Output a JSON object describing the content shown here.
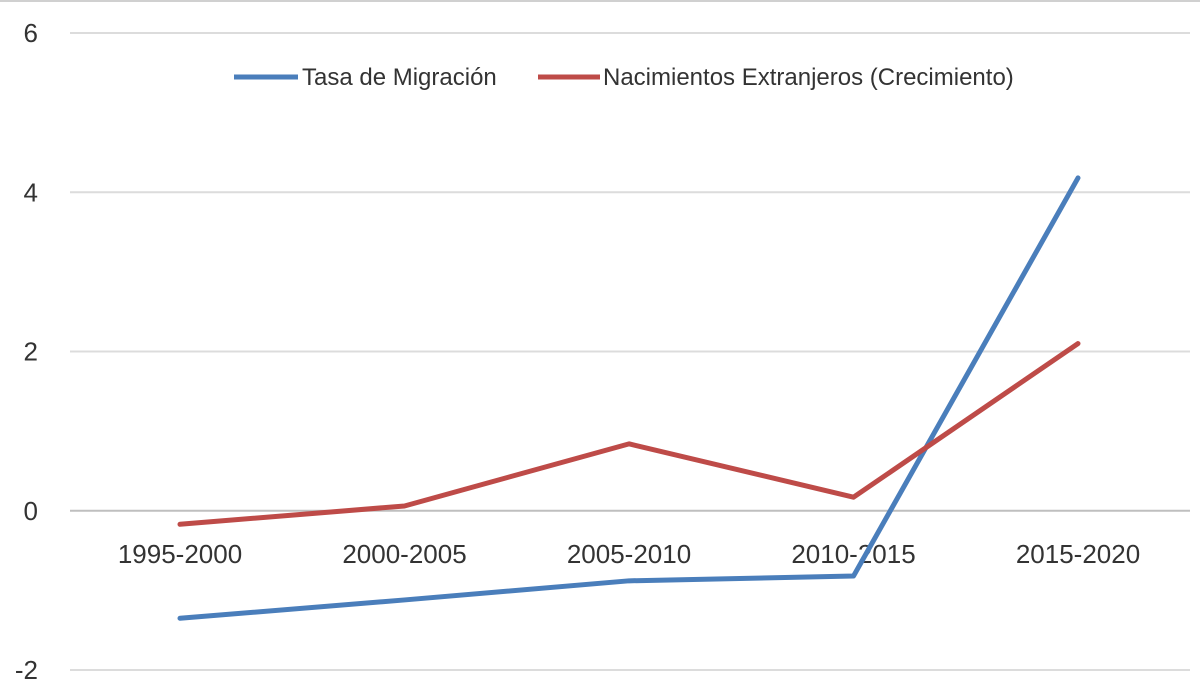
{
  "chart_data": {
    "type": "line",
    "categories": [
      "1995-2000",
      "2000-2005",
      "2005-2010",
      "2010-2015",
      "2015-2020"
    ],
    "series": [
      {
        "name": "Tasa de Migración",
        "values": [
          -1.35,
          -1.12,
          -0.88,
          -0.82,
          4.18
        ],
        "color": "#4a7ebb"
      },
      {
        "name": "Nacimientos Extranjeros (Crecimiento)",
        "values": [
          -0.17,
          0.06,
          0.84,
          0.17,
          2.1
        ],
        "color": "#be4b48"
      }
    ],
    "yticks": [
      -2,
      0,
      2,
      4,
      6
    ],
    "ylim": [
      -2,
      6
    ],
    "grid": true,
    "legend_position": "top"
  }
}
